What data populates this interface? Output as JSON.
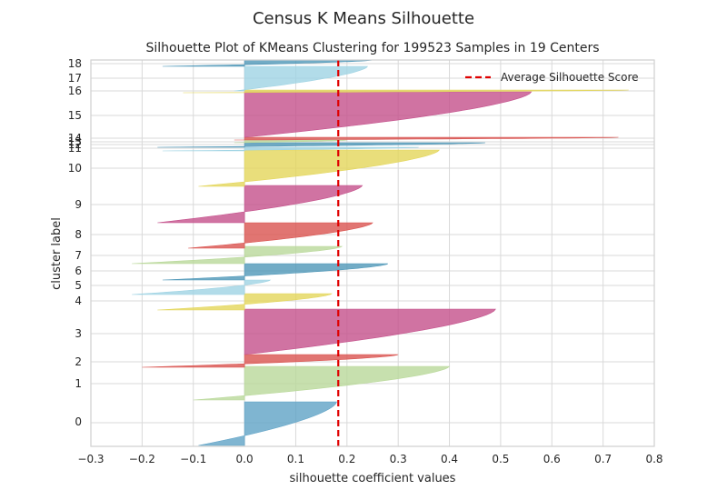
{
  "suptitle": "Census K Means Silhouette",
  "chart_data": {
    "type": "area",
    "title": "Silhouette Plot of KMeans Clustering for 199523 Samples in 19 Centers",
    "xlabel": "silhouette coefficient values",
    "ylabel": "cluster label",
    "xlim": [
      -0.3,
      0.8
    ],
    "x_ticks": [
      "−0.3",
      "−0.2",
      "−0.1",
      "0.0",
      "0.1",
      "0.2",
      "0.3",
      "0.4",
      "0.5",
      "0.6",
      "0.7",
      "0.8"
    ],
    "grid": true,
    "average_silhouette_score": 0.183,
    "legend": {
      "placement": "top-right",
      "entries": [
        "Average Silhouette Score"
      ]
    },
    "clusters": [
      {
        "label": "0",
        "max": 0.18,
        "min": -0.09,
        "color": "#5fa2c6"
      },
      {
        "label": "1",
        "max": 0.4,
        "min": -0.1,
        "color": "#b9d89a"
      },
      {
        "label": "2",
        "max": 0.3,
        "min": -0.2,
        "color": "#d9534f"
      },
      {
        "label": "3",
        "max": 0.49,
        "min": 0.0,
        "color": "#c4508b"
      },
      {
        "label": "4",
        "max": 0.17,
        "min": -0.17,
        "color": "#e3d65a"
      },
      {
        "label": "5",
        "max": 0.05,
        "min": -0.22,
        "color": "#9fd3e3"
      },
      {
        "label": "6",
        "max": 0.28,
        "min": -0.16,
        "color": "#4f97b8"
      },
      {
        "label": "7",
        "max": 0.19,
        "min": -0.22,
        "color": "#b9d89a"
      },
      {
        "label": "8",
        "max": 0.25,
        "min": -0.11,
        "color": "#d9534f"
      },
      {
        "label": "9",
        "max": 0.23,
        "min": -0.17,
        "color": "#c4508b"
      },
      {
        "label": "10",
        "max": 0.38,
        "min": -0.09,
        "color": "#e3d65a"
      },
      {
        "label": "11",
        "max": 0.34,
        "min": -0.16,
        "color": "#9fd3e3"
      },
      {
        "label": "12",
        "max": 0.47,
        "min": -0.17,
        "color": "#4f97b8"
      },
      {
        "label": "13",
        "max": 0.2,
        "min": -0.02,
        "color": "#b9d89a"
      },
      {
        "label": "14",
        "max": 0.73,
        "min": -0.02,
        "color": "#d9534f"
      },
      {
        "label": "15",
        "max": 0.56,
        "min": 0.0,
        "color": "#c4508b"
      },
      {
        "label": "16",
        "max": 0.75,
        "min": -0.12,
        "color": "#e3d65a"
      },
      {
        "label": "17",
        "max": 0.24,
        "min": -0.02,
        "color": "#9fd3e3"
      },
      {
        "label": "18",
        "max": 0.25,
        "min": -0.16,
        "color": "#4f97b8"
      }
    ]
  }
}
